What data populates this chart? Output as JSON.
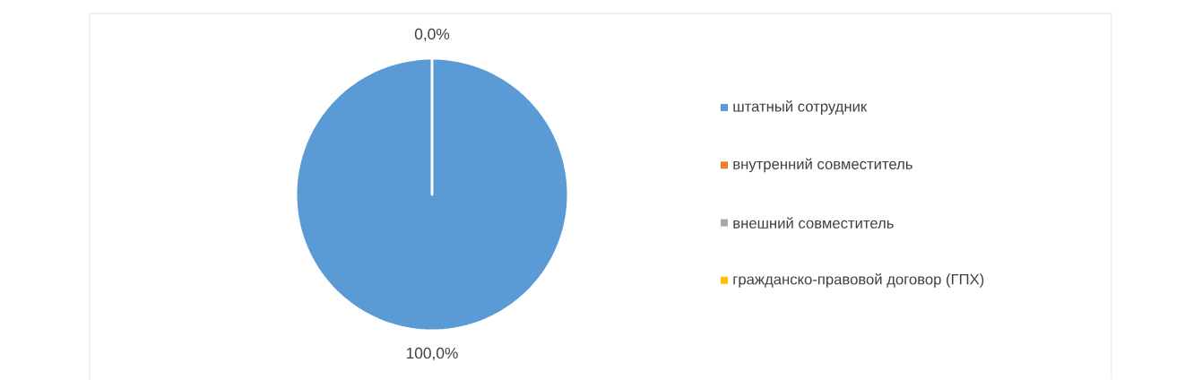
{
  "chart_data": {
    "type": "pie",
    "categories": [
      "штатный сотрудник",
      "внутренний совместитель",
      "внешний совместитель",
      "гражданско-правовой договор (ГПХ)"
    ],
    "values": [
      100,
      0,
      0,
      0
    ],
    "colors": [
      "#5b9bd5",
      "#ed7d31",
      "#a5a5a5",
      "#ffc000"
    ],
    "value_labels": [
      "100,0%",
      "0,0%",
      null,
      null
    ],
    "legend": "right"
  }
}
